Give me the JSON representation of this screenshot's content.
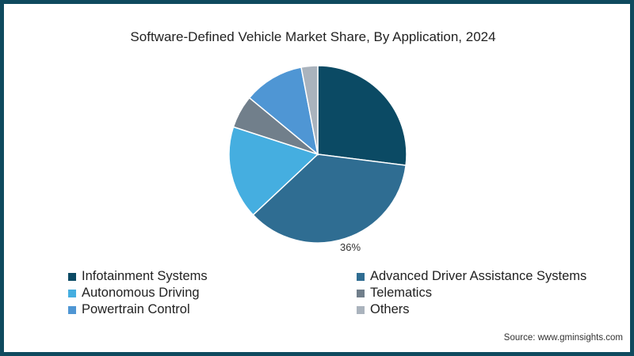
{
  "chart_data": {
    "type": "pie",
    "title": "Software-Defined Vehicle Market Share, By Application, 2024",
    "categories": [
      "Infotainment Systems",
      "Advanced Driver Assistance Systems",
      "Autonomous Driving",
      "Telematics",
      "Powertrain Control",
      "Others"
    ],
    "values": [
      27,
      36,
      17,
      6,
      11,
      3
    ],
    "colors": [
      "#0b4a64",
      "#2f6d92",
      "#45aee0",
      "#717f8b",
      "#4f96d4",
      "#aab3bd"
    ],
    "data_labels": [
      {
        "category": "Advanced Driver Assistance Systems",
        "label": "36%"
      }
    ],
    "start_angle": "12 o'clock, clockwise",
    "legend_position": "bottom"
  },
  "title": "Software-Defined Vehicle Market Share, By Application, 2024",
  "label_36": "36%",
  "legend": [
    {
      "label": "Infotainment Systems",
      "color": "#0b4a64"
    },
    {
      "label": "Advanced Driver Assistance Systems",
      "color": "#2f6d92"
    },
    {
      "label": "Autonomous Driving",
      "color": "#45aee0"
    },
    {
      "label": "Telematics",
      "color": "#717f8b"
    },
    {
      "label": "Powertrain Control",
      "color": "#4f96d4"
    },
    {
      "label": "Others",
      "color": "#aab3bd"
    }
  ],
  "source": "Source: www.gminsights.com"
}
